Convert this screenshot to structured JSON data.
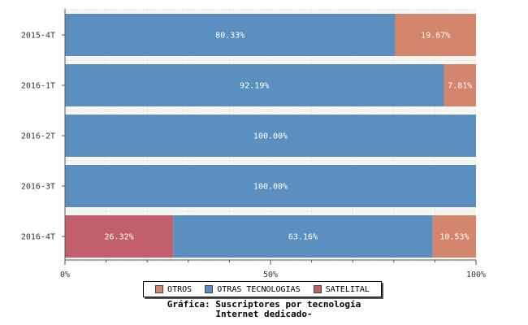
{
  "chart_data": {
    "type": "bar",
    "orientation": "horizontal",
    "stacked": true,
    "categories": [
      "2015-4T",
      "2016-1T",
      "2016-2T",
      "2016-3T",
      "2016-4T"
    ],
    "series": [
      {
        "name": "SATELITAL",
        "color": "#c1606a",
        "values": [
          0,
          0,
          0,
          0,
          26.32
        ],
        "labels": [
          "",
          "",
          "",
          "",
          "26.32%"
        ]
      },
      {
        "name": "OTRAS TECNOLOGIAS",
        "color": "#5b8fbf",
        "values": [
          80.33,
          92.19,
          100.0,
          100.0,
          63.16
        ],
        "labels": [
          "80.33%",
          "92.19%",
          "100.00%",
          "100.00%",
          "63.16%"
        ]
      },
      {
        "name": "OTROS",
        "color": "#d4856e",
        "values": [
          19.67,
          7.81,
          0,
          0,
          10.53
        ],
        "labels": [
          "19.67%",
          "7.81%",
          "",
          "",
          "10.53%"
        ]
      }
    ],
    "xlim": [
      0,
      100
    ],
    "x_ticks": [
      "0%",
      "50%",
      "100%"
    ],
    "grid": true,
    "legend_order": [
      "OTROS",
      "OTRAS TECNOLOGIAS",
      "SATELITAL"
    ],
    "legend_position": "bottom"
  },
  "caption": {
    "line1": "Gráfica: Suscriptores por tecnología",
    "line2": "Internet dedicado-"
  }
}
